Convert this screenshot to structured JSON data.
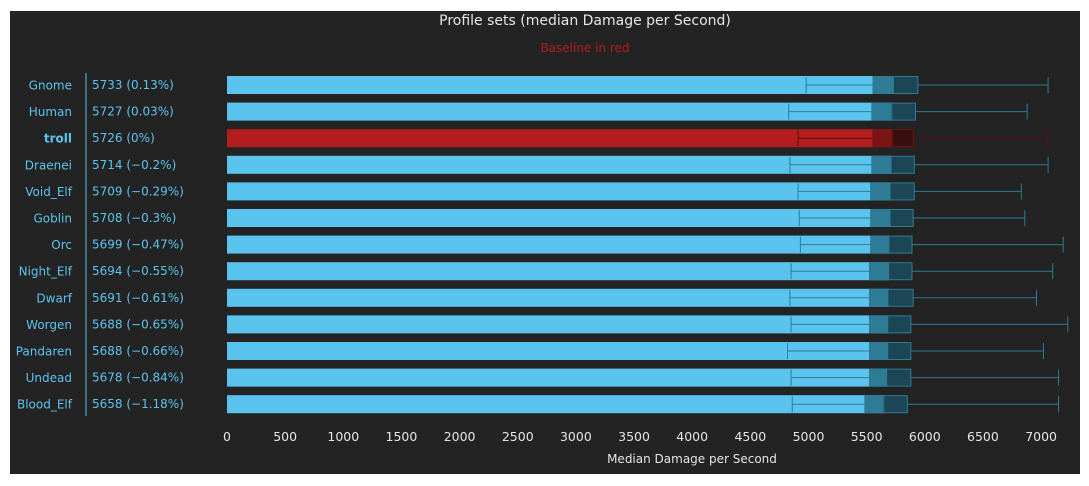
{
  "chart_data": {
    "type": "bar",
    "title": "Profile sets (median Damage per Second)",
    "subtitle": "Baseline in red",
    "xlabel": "Median Damage per Second",
    "ylabel": "",
    "xlim": [
      0,
      7200
    ],
    "xticks": [
      0,
      500,
      1000,
      1500,
      2000,
      2500,
      3000,
      3500,
      4000,
      4500,
      5000,
      5500,
      6000,
      6500,
      7000
    ],
    "baseline": "troll",
    "colors": {
      "background": "#232323",
      "bar": "#5bc4ee",
      "baseline_bar": "#b41d1d",
      "box": "#2e7b96",
      "box_dark": "#1c4a5c",
      "label": "#5bc4ee",
      "baseline_label": "#d81e1e",
      "text": "#e6e6e6"
    },
    "rows": [
      {
        "name": "Gnome",
        "label": "5733 (0.13%)",
        "mean": 5733,
        "min": 4980,
        "q1": 5550,
        "median": 5730,
        "q3": 5940,
        "max": 7060
      },
      {
        "name": "Human",
        "label": "5727 (0.03%)",
        "mean": 5727,
        "min": 4830,
        "q1": 5540,
        "median": 5710,
        "q3": 5920,
        "max": 6880
      },
      {
        "name": "troll",
        "label": "5726 (0%)",
        "mean": 5726,
        "min": 4910,
        "q1": 5550,
        "median": 5720,
        "q3": 5900,
        "max": 7050
      },
      {
        "name": "Draenei",
        "label": "5714 (-0.2%)",
        "mean": 5714,
        "min": 4840,
        "q1": 5540,
        "median": 5710,
        "q3": 5910,
        "max": 7060
      },
      {
        "name": "Void_Elf",
        "label": "5709 (-0.29%)",
        "mean": 5709,
        "min": 4910,
        "q1": 5530,
        "median": 5700,
        "q3": 5910,
        "max": 6830
      },
      {
        "name": "Goblin",
        "label": "5708 (-0.3%)",
        "mean": 5708,
        "min": 4920,
        "q1": 5530,
        "median": 5700,
        "q3": 5900,
        "max": 6860
      },
      {
        "name": "Orc",
        "label": "5699 (-0.47%)",
        "mean": 5699,
        "min": 4930,
        "q1": 5530,
        "median": 5690,
        "q3": 5890,
        "max": 7190
      },
      {
        "name": "Night_Elf",
        "label": "5694 (-0.55%)",
        "mean": 5694,
        "min": 4850,
        "q1": 5520,
        "median": 5690,
        "q3": 5890,
        "max": 7100
      },
      {
        "name": "Dwarf",
        "label": "5691 (-0.61%)",
        "mean": 5691,
        "min": 4840,
        "q1": 5520,
        "median": 5680,
        "q3": 5900,
        "max": 6960
      },
      {
        "name": "Worgen",
        "label": "5688 (-0.65%)",
        "mean": 5688,
        "min": 4850,
        "q1": 5520,
        "median": 5680,
        "q3": 5880,
        "max": 7230
      },
      {
        "name": "Pandaren",
        "label": "5688 (-0.66%)",
        "mean": 5688,
        "min": 4820,
        "q1": 5520,
        "median": 5680,
        "q3": 5880,
        "max": 7020
      },
      {
        "name": "Undead",
        "label": "5678 (-0.84%)",
        "mean": 5678,
        "min": 4850,
        "q1": 5520,
        "median": 5670,
        "q3": 5880,
        "max": 7150
      },
      {
        "name": "Blood_Elf",
        "label": "5658 (-1.18%)",
        "mean": 5658,
        "min": 4860,
        "q1": 5480,
        "median": 5640,
        "q3": 5850,
        "max": 7150
      }
    ]
  }
}
